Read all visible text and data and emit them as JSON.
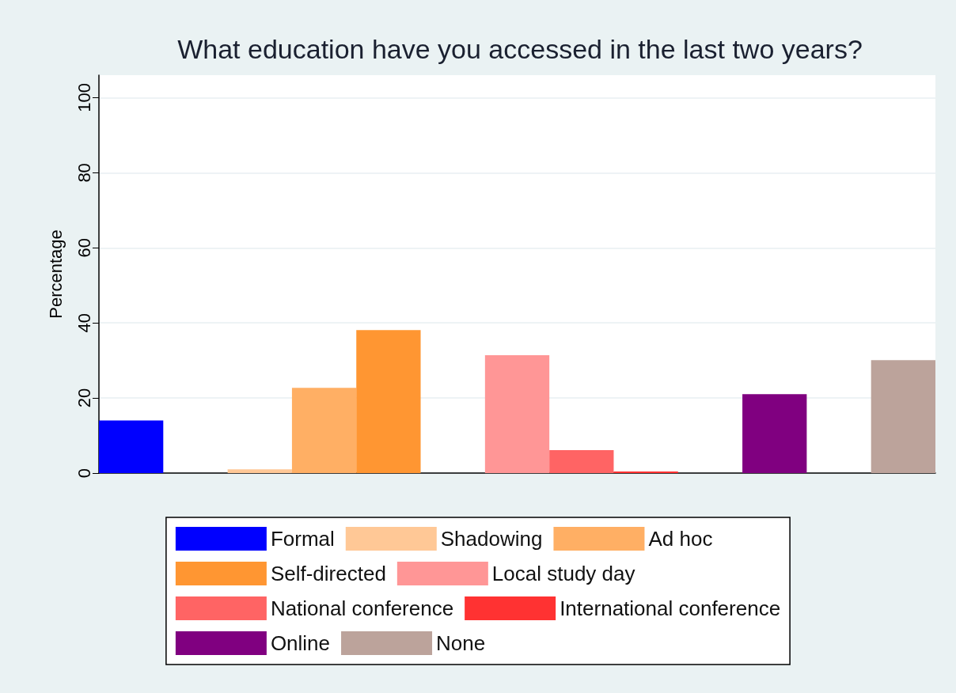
{
  "chart_data": {
    "type": "bar",
    "title": "What education have you accessed in the last two years?",
    "ylabel": "Percentage",
    "categories": [
      null,
      null,
      null,
      null,
      null,
      null,
      null,
      null,
      null,
      null,
      null,
      null,
      null
    ],
    "series": [
      {
        "name": "Formal",
        "color": "#0000ff",
        "values": [
          14,
          null,
          null,
          null,
          null,
          null,
          null,
          null,
          null,
          null,
          null,
          null,
          null
        ]
      },
      {
        "name": "Shadowing",
        "color": "#ffc896",
        "values": [
          null,
          null,
          1,
          null,
          null,
          null,
          null,
          null,
          null,
          null,
          null,
          null,
          null
        ]
      },
      {
        "name": "Ad hoc",
        "color": "#ffaf64",
        "values": [
          null,
          null,
          null,
          22.7,
          null,
          null,
          null,
          null,
          null,
          null,
          null,
          null,
          null
        ]
      },
      {
        "name": "Self-directed",
        "color": "#ff9632",
        "values": [
          null,
          null,
          null,
          null,
          38.1,
          null,
          null,
          null,
          null,
          null,
          null,
          null,
          null
        ]
      },
      {
        "name": "Local study day",
        "color": "#ff9696",
        "values": [
          null,
          null,
          null,
          null,
          null,
          null,
          31.4,
          null,
          null,
          null,
          null,
          null,
          null
        ]
      },
      {
        "name": "National conference",
        "color": "#ff6464",
        "values": [
          null,
          null,
          null,
          null,
          null,
          null,
          null,
          6.1,
          null,
          null,
          null,
          null,
          null
        ]
      },
      {
        "name": "International conference",
        "color": "#ff3232",
        "values": [
          null,
          null,
          null,
          null,
          null,
          null,
          null,
          null,
          0.4,
          null,
          null,
          null,
          null
        ]
      },
      {
        "name": "Online",
        "color": "#800080",
        "values": [
          null,
          null,
          null,
          null,
          null,
          null,
          null,
          null,
          null,
          null,
          21,
          null,
          null
        ]
      },
      {
        "name": "None",
        "color": "#bca39b",
        "values": [
          null,
          null,
          null,
          null,
          null,
          null,
          null,
          null,
          null,
          null,
          null,
          null,
          30.1
        ]
      }
    ],
    "ylim": [
      0,
      106
    ],
    "yticks": [
      0,
      20,
      40,
      60,
      80,
      100
    ],
    "grid": "y",
    "legend": "bottom",
    "tick_labels": "y"
  }
}
